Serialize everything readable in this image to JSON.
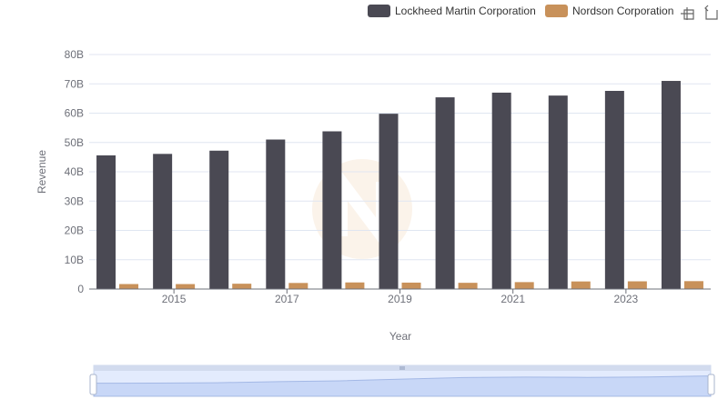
{
  "toolbox": {
    "zoom_icon": "data-zoom-icon",
    "restore_icon": "restore-icon"
  },
  "watermark": {
    "icon": "logo-watermark"
  },
  "chart_data": {
    "type": "bar",
    "title": "",
    "xlabel": "Year",
    "ylabel": "Revenue",
    "x_tick_labels": [
      "2015",
      "2017",
      "2019",
      "2021",
      "2023"
    ],
    "y_tick_labels": [
      "0",
      "10B",
      "20B",
      "30B",
      "40B",
      "50B",
      "60B",
      "70B",
      "80B"
    ],
    "ylim": [
      0,
      80000000000
    ],
    "grid": true,
    "legend_position": "top-right",
    "categories": [
      "2014",
      "2015",
      "2016",
      "2017",
      "2018",
      "2019",
      "2020",
      "2021",
      "2022",
      "2023",
      "2024"
    ],
    "series": [
      {
        "name": "Lockheed Martin Corporation",
        "color": "#4a4953",
        "values": [
          45600000000,
          46100000000,
          47200000000,
          51000000000,
          53800000000,
          59800000000,
          65400000000,
          67000000000,
          66000000000,
          67600000000,
          71000000000
        ]
      },
      {
        "name": "Nordson Corporation",
        "color": "#c8915a",
        "values": [
          1700000000,
          1690000000,
          1810000000,
          2070000000,
          2250000000,
          2190000000,
          2120000000,
          2360000000,
          2590000000,
          2630000000,
          2690000000
        ]
      }
    ]
  }
}
